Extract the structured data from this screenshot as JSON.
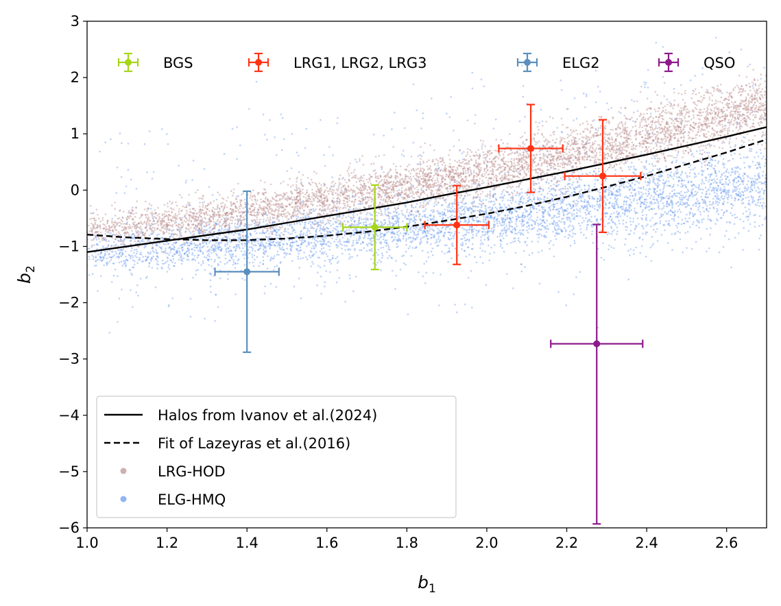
{
  "chart_data": {
    "type": "scatter",
    "xlabel": "b",
    "xlabel_sub": "1",
    "ylabel": "b",
    "ylabel_sub": "2",
    "xlim": [
      1.0,
      2.7
    ],
    "ylim": [
      -6,
      3
    ],
    "xticks": [
      1.0,
      1.2,
      1.4,
      1.6,
      1.8,
      2.0,
      2.2,
      2.4,
      2.6
    ],
    "xtick_labels": [
      "1.0",
      "1.2",
      "1.4",
      "1.6",
      "1.8",
      "2.0",
      "2.2",
      "2.4",
      "2.6"
    ],
    "yticks": [
      -6,
      -5,
      -4,
      -3,
      -2,
      -1,
      0,
      1,
      2,
      3
    ],
    "ytick_labels": [
      "−6",
      "−5",
      "−4",
      "−3",
      "−2",
      "−1",
      "0",
      "1",
      "2",
      "3"
    ],
    "grid": false,
    "measurements": [
      {
        "name": "BGS",
        "color": "#a6d616",
        "points": [
          {
            "x": 1.72,
            "y": -0.66,
            "xerr": 0.08,
            "yerr": 0.75
          }
        ]
      },
      {
        "name": "LRG1, LRG2, LRG3",
        "color": "#ff3314",
        "points": [
          {
            "x": 1.925,
            "y": -0.62,
            "xerr": 0.08,
            "yerr": 0.7
          },
          {
            "x": 2.11,
            "y": 0.74,
            "xerr": 0.08,
            "yerr": 0.78
          },
          {
            "x": 2.29,
            "y": 0.25,
            "xerr": 0.095,
            "yerr": 1.0
          }
        ]
      },
      {
        "name": "ELG2",
        "color": "#5a8fbe",
        "points": [
          {
            "x": 1.4,
            "y": -1.45,
            "xerr": 0.08,
            "yerr": 1.43
          }
        ]
      },
      {
        "name": "QSO",
        "color": "#8b1a8b",
        "points": [
          {
            "x": 2.275,
            "y": -2.73,
            "xerr": 0.115,
            "yerr": 2.1,
            "yerr_up": 2.12,
            "yerr_down": 3.2
          }
        ]
      }
    ],
    "lines": [
      {
        "name": "Halos from Ivanov et al.(2024)",
        "style": "solid",
        "color": "#000000",
        "x": [
          1.0,
          1.1,
          1.2,
          1.3,
          1.4,
          1.5,
          1.6,
          1.7,
          1.8,
          1.9,
          2.0,
          2.1,
          2.2,
          2.3,
          2.4,
          2.5,
          2.6,
          2.7
        ],
        "y": [
          -1.1,
          -1.0,
          -0.9,
          -0.8,
          -0.7,
          -0.58,
          -0.46,
          -0.34,
          -0.22,
          -0.08,
          0.05,
          0.19,
          0.33,
          0.48,
          0.63,
          0.79,
          0.95,
          1.12
        ]
      },
      {
        "name": "Fit of Lazeyras et al.(2016)",
        "style": "dashed",
        "color": "#000000",
        "x": [
          1.0,
          1.1,
          1.2,
          1.3,
          1.4,
          1.5,
          1.6,
          1.7,
          1.8,
          1.9,
          2.0,
          2.1,
          2.2,
          2.3,
          2.4,
          2.5,
          2.6,
          2.7
        ],
        "y": [
          -0.79,
          -0.84,
          -0.87,
          -0.89,
          -0.89,
          -0.86,
          -0.81,
          -0.74,
          -0.65,
          -0.54,
          -0.42,
          -0.28,
          -0.12,
          0.06,
          0.25,
          0.46,
          0.67,
          0.9
        ]
      }
    ],
    "scatter_samples": [
      {
        "name": "LRG-HOD",
        "color": "#bc8f8f",
        "count": 5000,
        "trend": {
          "y_at_x1": -0.72,
          "y_at_x2_7": 1.5
        },
        "spread": 0.22
      },
      {
        "name": "ELG-HMQ",
        "color": "#6495ed",
        "count": 5000,
        "trend": {
          "y_at_x1": -1.1,
          "y_at_x2_7": 0.15
        },
        "spread": 0.28
      }
    ],
    "legends": [
      {
        "placement": "top",
        "ncol": 4,
        "entries": [
          "BGS",
          "LRG1, LRG2, LRG3",
          "ELG2",
          "QSO"
        ]
      },
      {
        "placement": "lower-left",
        "ncol": 1,
        "entries": [
          "Halos from Ivanov et al.(2024)",
          "Fit of Lazeyras et al.(2016)",
          "LRG-HOD",
          "ELG-HMQ"
        ]
      }
    ]
  }
}
